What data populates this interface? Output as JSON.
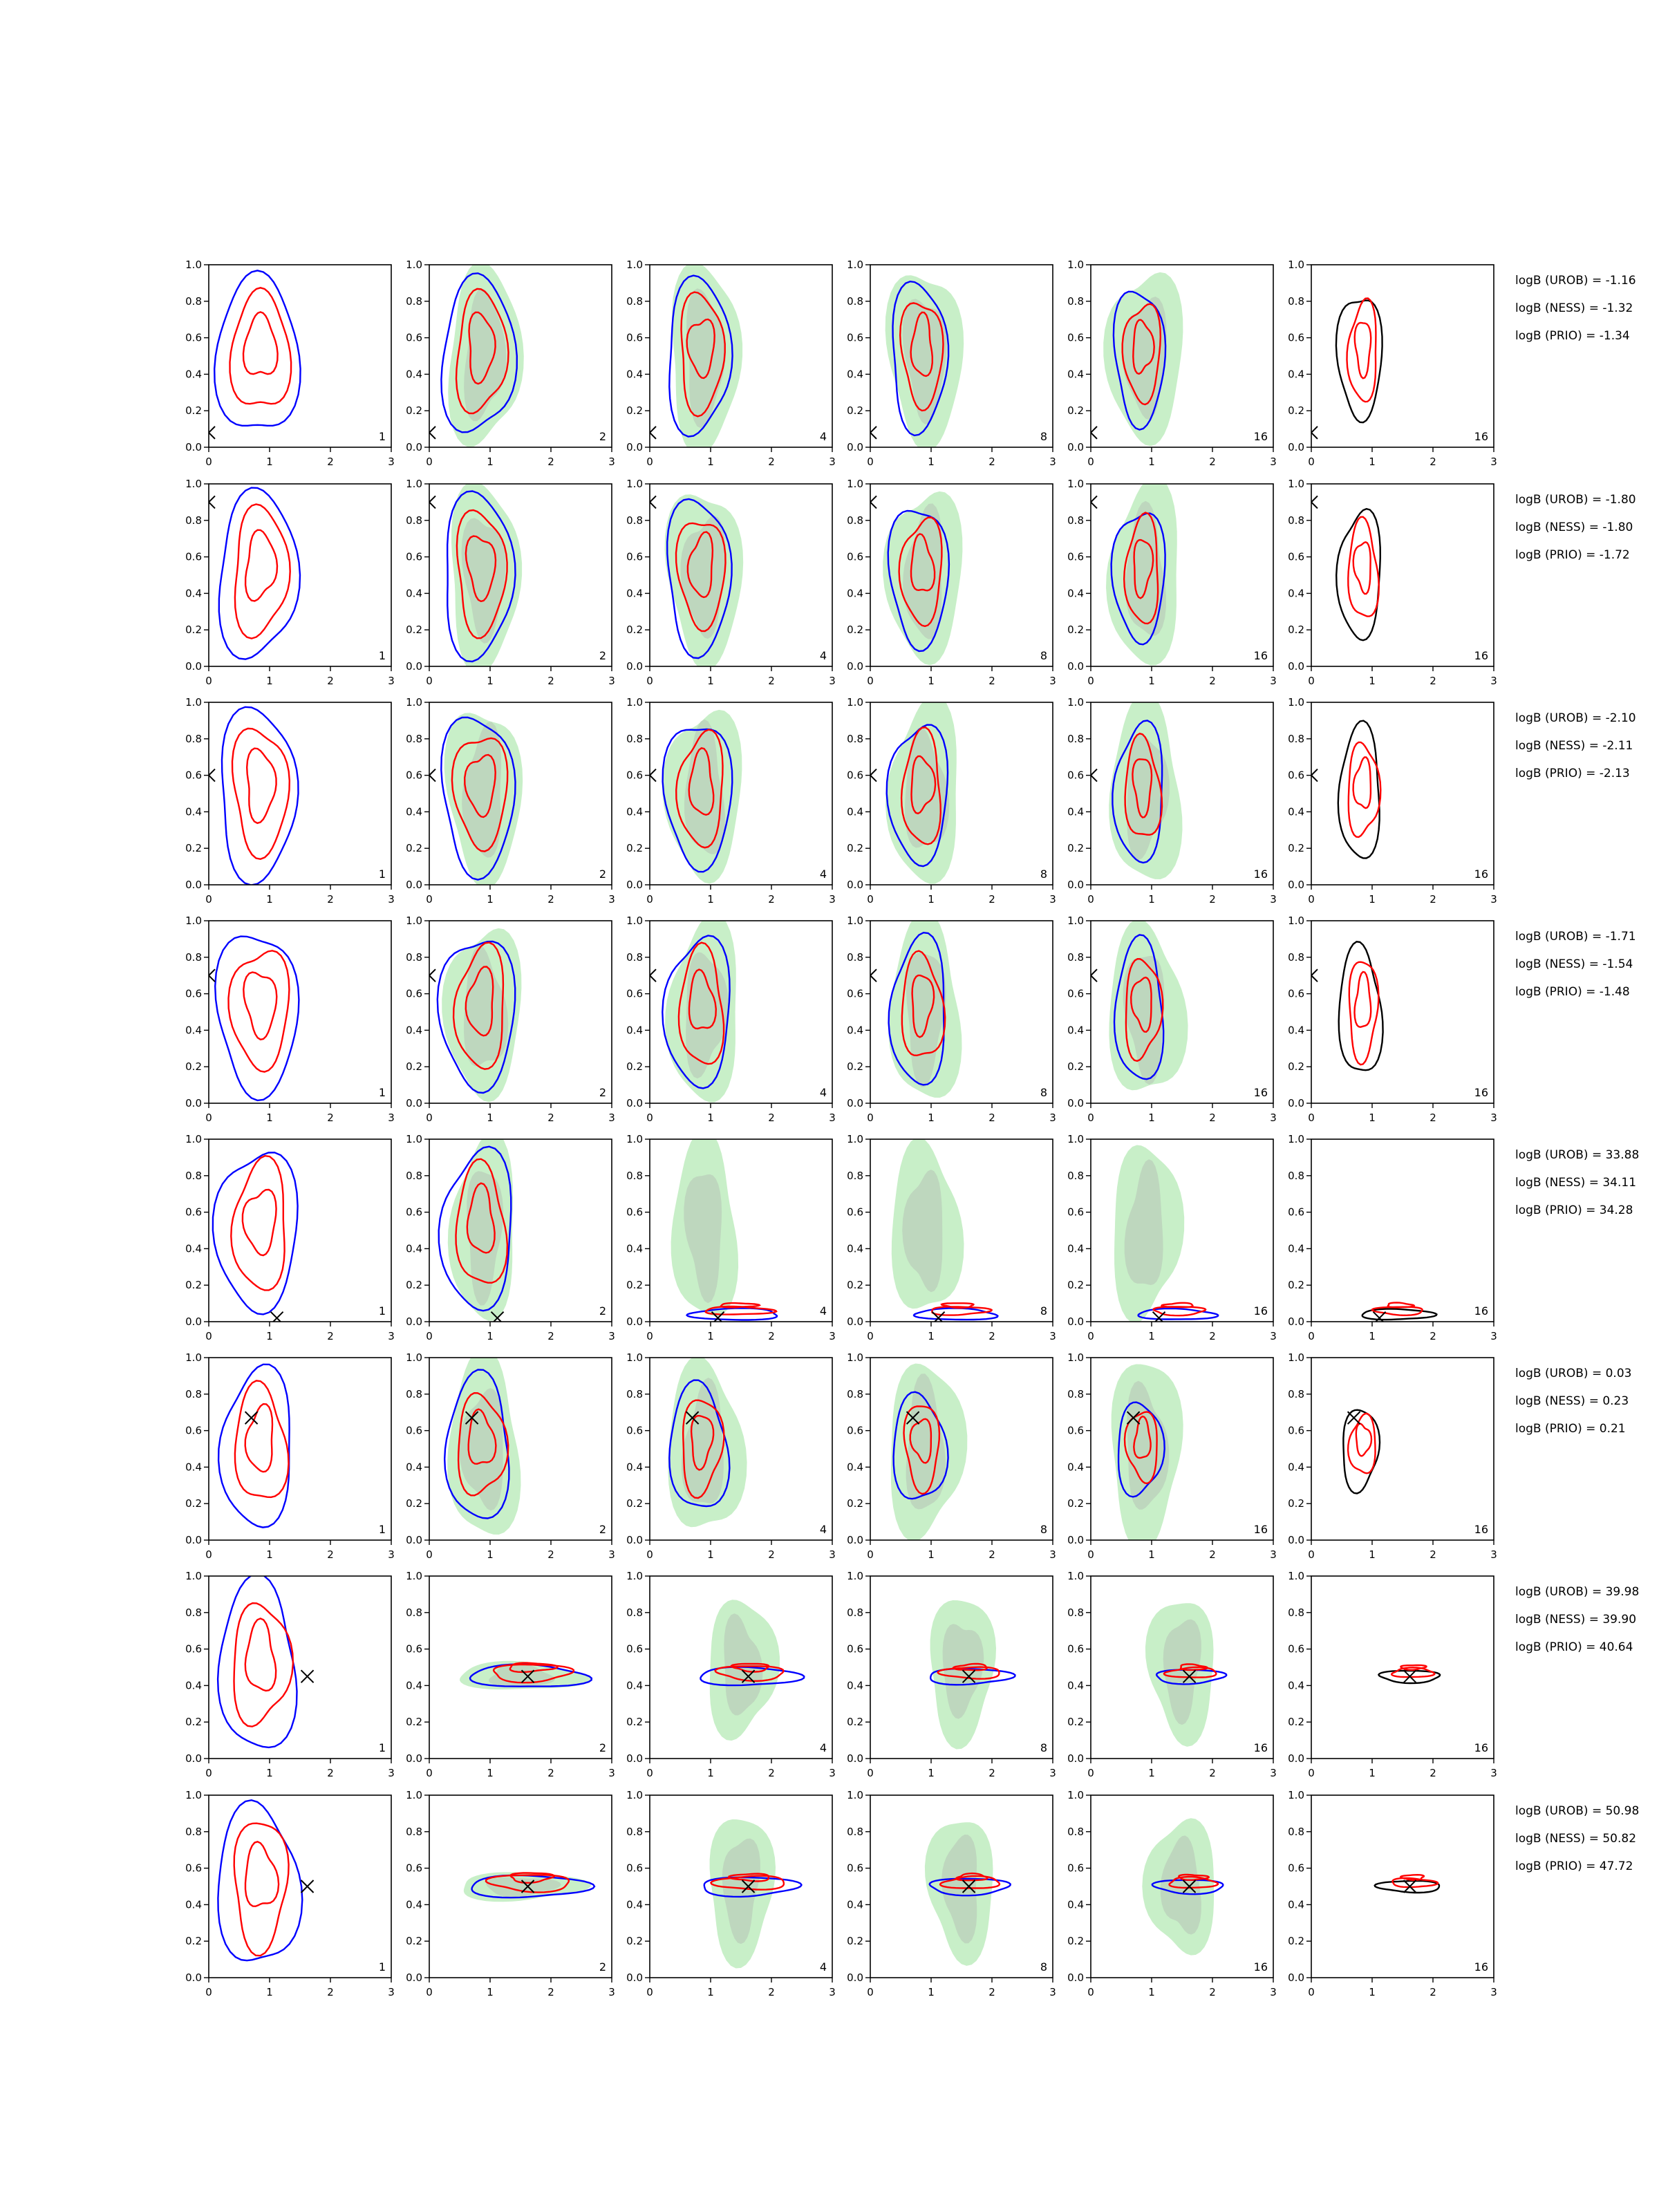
{
  "figure": {
    "x_ticks": [
      "0",
      "1",
      "2",
      "3"
    ],
    "y_ticks": [
      "0.0",
      "0.2",
      "0.4",
      "0.6",
      "0.8",
      "1.0"
    ],
    "column_labels": [
      "1",
      "2",
      "4",
      "8",
      "16",
      "16"
    ],
    "colors": {
      "red": "#ff0000",
      "blue": "#0000ff",
      "black": "#000000",
      "green_fill": "#c8efc8",
      "gray_fill": "#b9cdb9"
    }
  },
  "chart_data": {
    "type": "contour-grid",
    "xlim": [
      0,
      3
    ],
    "ylim": [
      0,
      1
    ],
    "rows": 8,
    "columns": 6,
    "column_labels": [
      "1",
      "2",
      "4",
      "8",
      "16",
      "16"
    ],
    "grid": false,
    "logB": [
      {
        "row": 1,
        "lines": [
          "logB (UROB) = -1.16",
          "logB (NESS) = -1.32",
          "logB (PRIO) = -1.34"
        ],
        "marker": [
          0.0,
          0.08
        ],
        "layout": "diffuse"
      },
      {
        "row": 2,
        "lines": [
          "logB (UROB) = -1.80",
          "logB (NESS) = -1.80",
          "logB (PRIO) = -1.72"
        ],
        "marker": [
          0.0,
          0.9
        ],
        "layout": "diffuse"
      },
      {
        "row": 3,
        "lines": [
          "logB (UROB) = -2.10",
          "logB (NESS) = -2.11",
          "logB (PRIO) = -2.13"
        ],
        "marker": [
          0.0,
          0.6
        ],
        "layout": "diffuse"
      },
      {
        "row": 4,
        "lines": [
          "logB (UROB) = -1.71",
          "logB (NESS) = -1.54",
          "logB (PRIO) = -1.48"
        ],
        "marker": [
          0.0,
          0.7
        ],
        "layout": "diffuse"
      },
      {
        "row": 5,
        "lines": [
          "logB (UROB) = 33.88",
          "logB (NESS) = 34.11",
          "logB (PRIO) = 34.28"
        ],
        "marker": [
          1.12,
          0.02
        ],
        "layout": "bottom"
      },
      {
        "row": 6,
        "lines": [
          "logB (UROB) = 0.03",
          "logB (NESS) = 0.23",
          "logB (PRIO) = 0.21"
        ],
        "marker": [
          0.7,
          0.67
        ],
        "layout": "peak"
      },
      {
        "row": 7,
        "lines": [
          "logB (UROB) = 39.98",
          "logB (NESS) = 39.90",
          "logB (PRIO) = 40.64"
        ],
        "marker": [
          1.62,
          0.45
        ],
        "layout": "band"
      },
      {
        "row": 8,
        "lines": [
          "logB (UROB) = 50.98",
          "logB (NESS) = 50.82",
          "logB (PRIO) = 47.72"
        ],
        "marker": [
          1.62,
          0.5
        ],
        "layout": "band"
      }
    ]
  }
}
